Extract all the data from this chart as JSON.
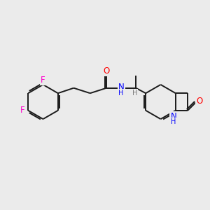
{
  "bg_color": "#ebebeb",
  "bond_color": "#1a1a1a",
  "bond_width": 1.4,
  "atom_colors": {
    "F": "#ff00cc",
    "O": "#ff0000",
    "N": "#0000ff",
    "C": "#1a1a1a",
    "H": "#555555"
  },
  "font_size_atoms": 8.5,
  "font_size_small": 7.0
}
